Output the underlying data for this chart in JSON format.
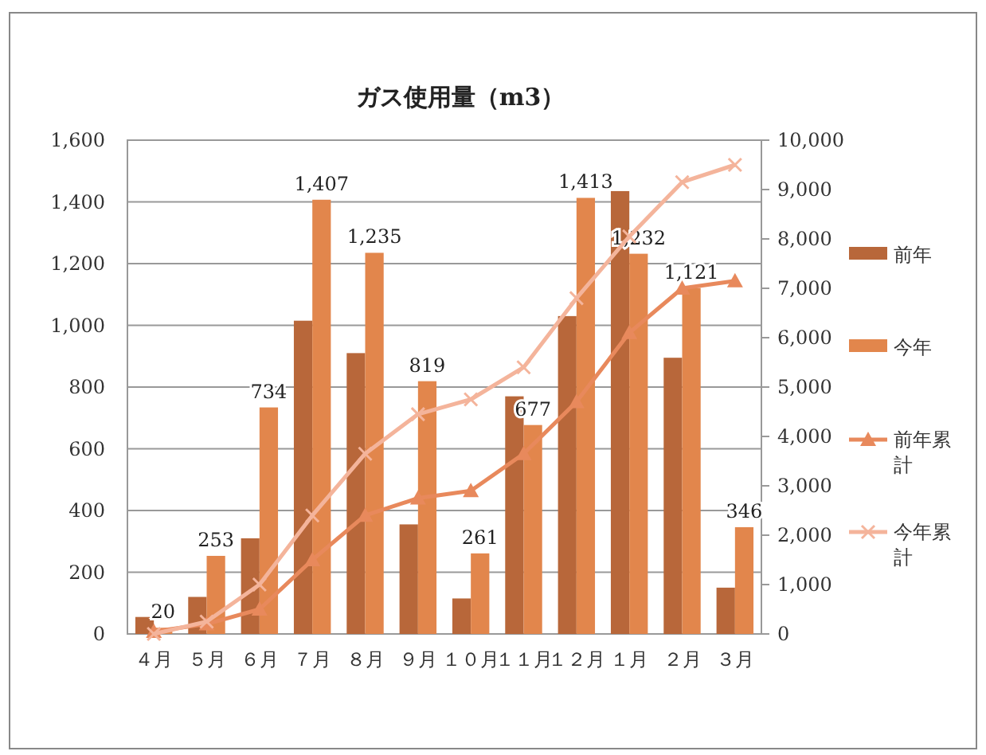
{
  "chart_data": {
    "type": "bar",
    "title": "ガス使用量（m3）",
    "categories": [
      "４月",
      "５月",
      "６月",
      "７月",
      "８月",
      "９月",
      "１０月",
      "１１月",
      "１２月",
      "１月",
      "２月",
      "３月"
    ],
    "series": [
      {
        "name": "前年",
        "color": "#b8673a",
        "values": [
          55,
          120,
          310,
          1015,
          910,
          355,
          115,
          770,
          1030,
          1435,
          895,
          150
        ]
      },
      {
        "name": "今年",
        "color": "#e2864c",
        "values": [
          20,
          253,
          734,
          1407,
          1235,
          819,
          261,
          677,
          1413,
          1232,
          1121,
          346
        ],
        "value_labels": [
          "20",
          "253",
          "734",
          "1,407",
          "1,235",
          "819",
          "261",
          "677",
          "1,413",
          "1,232",
          "1,121",
          "346"
        ]
      },
      {
        "name": "前年累計",
        "type": "line",
        "axis": "y2",
        "marker": "triangle",
        "color": "#e8895c",
        "values": [
          50,
          200,
          500,
          1500,
          2400,
          2750,
          2900,
          3650,
          4700,
          6100,
          7000,
          7150
        ]
      },
      {
        "name": "今年累計",
        "type": "line",
        "axis": "y2",
        "marker": "cross",
        "color": "#f4b49b",
        "values": [
          0,
          250,
          1000,
          2400,
          3650,
          4450,
          4750,
          5400,
          6800,
          8050,
          9150,
          9500
        ]
      }
    ],
    "ylim": [
      0,
      1600
    ],
    "yticks": [
      0,
      200,
      400,
      600,
      800,
      {
        "value": 1000,
        "label": "1,000"
      },
      {
        "value": 1200,
        "label": "1,200"
      },
      {
        "value": 1400,
        "label": "1,400"
      },
      {
        "value": 1600,
        "label": "1,600"
      }
    ],
    "y2lim": [
      0,
      10000
    ],
    "y2ticks": [
      0,
      {
        "value": 1000,
        "label": "1,000"
      },
      {
        "value": 2000,
        "label": "2,000"
      },
      {
        "value": 3000,
        "label": "3,000"
      },
      {
        "value": 4000,
        "label": "4,000"
      },
      {
        "value": 5000,
        "label": "5,000"
      },
      {
        "value": 6000,
        "label": "6,000"
      },
      {
        "value": 7000,
        "label": "7,000"
      },
      {
        "value": 8000,
        "label": "8,000"
      },
      {
        "value": 9000,
        "label": "9,000"
      },
      {
        "value": 10000,
        "label": "10,000"
      }
    ],
    "grid": "y",
    "legend": "right"
  }
}
